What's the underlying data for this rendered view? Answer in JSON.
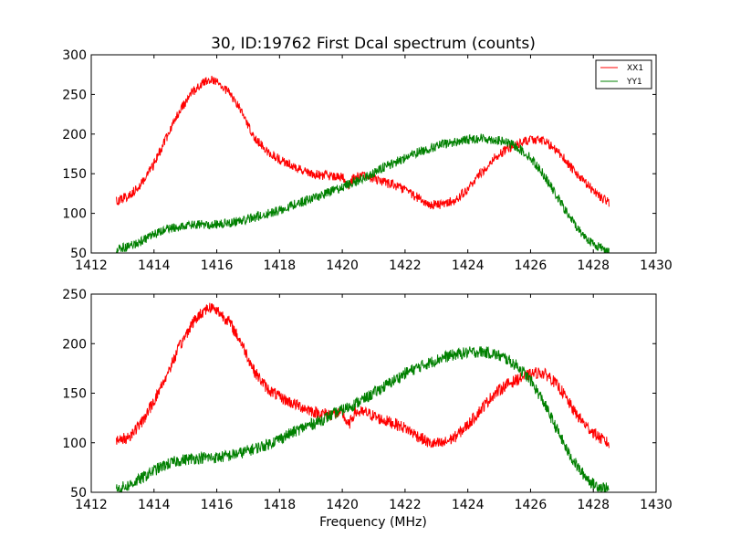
{
  "chart_data": [
    {
      "type": "line",
      "title": "30, ID:19762 First Dcal spectrum (counts)",
      "xlabel": "",
      "ylabel": "",
      "xlim": [
        1412,
        1430
      ],
      "ylim": [
        50,
        300
      ],
      "xticks": [
        1412,
        1414,
        1416,
        1418,
        1420,
        1422,
        1424,
        1426,
        1428,
        1430
      ],
      "yticks": [
        50,
        100,
        150,
        200,
        250,
        300
      ],
      "grid": false,
      "legend": "top-right",
      "series": [
        {
          "name": "XX1",
          "color": "#ff0000",
          "x": [
            1412.8,
            1413.2,
            1413.6,
            1414.0,
            1414.4,
            1414.8,
            1415.2,
            1415.6,
            1415.8,
            1416.0,
            1416.4,
            1416.8,
            1417.2,
            1417.6,
            1418.0,
            1418.4,
            1418.8,
            1419.2,
            1419.6,
            1420.0,
            1420.2,
            1420.4,
            1420.8,
            1421.2,
            1421.6,
            1422.0,
            1422.4,
            1422.8,
            1423.2,
            1423.6,
            1424.0,
            1424.4,
            1424.8,
            1425.2,
            1425.6,
            1426.0,
            1426.3,
            1426.6,
            1427.0,
            1427.4,
            1427.8,
            1428.2,
            1428.5
          ],
          "y": [
            115,
            122,
            138,
            162,
            195,
            228,
            252,
            266,
            269,
            266,
            252,
            228,
            196,
            178,
            168,
            160,
            153,
            149,
            147,
            146,
            135,
            147,
            146,
            141,
            136,
            130,
            120,
            111,
            111,
            117,
            131,
            150,
            168,
            180,
            188,
            193,
            193,
            187,
            173,
            152,
            136,
            122,
            113
          ]
        },
        {
          "name": "YY1",
          "color": "#008000",
          "x": [
            1412.8,
            1413.2,
            1413.6,
            1414.0,
            1414.4,
            1414.8,
            1415.2,
            1415.6,
            1416.0,
            1416.4,
            1416.8,
            1417.2,
            1417.6,
            1418.0,
            1418.4,
            1418.8,
            1419.2,
            1419.6,
            1420.0,
            1420.4,
            1420.8,
            1421.2,
            1421.6,
            1422.0,
            1422.4,
            1422.8,
            1423.2,
            1423.6,
            1424.0,
            1424.4,
            1424.8,
            1425.2,
            1425.6,
            1426.0,
            1426.4,
            1426.8,
            1427.2,
            1427.6,
            1428.0,
            1428.5
          ],
          "y": [
            55,
            58,
            65,
            73,
            80,
            83,
            85,
            86,
            86,
            88,
            91,
            95,
            99,
            104,
            110,
            116,
            121,
            127,
            133,
            140,
            147,
            155,
            163,
            170,
            177,
            182,
            187,
            190,
            193,
            195,
            193,
            190,
            183,
            170,
            150,
            124,
            98,
            76,
            61,
            53
          ]
        }
      ]
    },
    {
      "type": "line",
      "title": "",
      "xlabel": "Frequency (MHz)",
      "ylabel": "",
      "xlim": [
        1412,
        1430
      ],
      "ylim": [
        50,
        250
      ],
      "xticks": [
        1412,
        1414,
        1416,
        1418,
        1420,
        1422,
        1424,
        1426,
        1428,
        1430
      ],
      "yticks": [
        50,
        100,
        150,
        200,
        250
      ],
      "grid": false,
      "series": [
        {
          "color": "#ff0000",
          "x": [
            1412.8,
            1413.2,
            1413.6,
            1414.0,
            1414.4,
            1414.8,
            1415.2,
            1415.6,
            1415.8,
            1416.0,
            1416.4,
            1416.8,
            1417.2,
            1417.6,
            1418.0,
            1418.4,
            1418.8,
            1419.2,
            1419.6,
            1420.0,
            1420.2,
            1420.4,
            1420.8,
            1421.2,
            1421.6,
            1422.0,
            1422.4,
            1422.8,
            1423.2,
            1423.6,
            1424.0,
            1424.4,
            1424.8,
            1425.2,
            1425.6,
            1426.0,
            1426.3,
            1426.6,
            1427.0,
            1427.4,
            1427.8,
            1428.2,
            1428.5
          ],
          "y": [
            101,
            106,
            120,
            142,
            168,
            196,
            220,
            234,
            237,
            234,
            222,
            200,
            172,
            155,
            146,
            140,
            135,
            130,
            129,
            130,
            117,
            131,
            130,
            124,
            120,
            115,
            107,
            99,
            99,
            106,
            118,
            133,
            148,
            158,
            164,
            169,
            171,
            167,
            152,
            131,
            116,
            105,
            99
          ]
        },
        {
          "color": "#008000",
          "x": [
            1412.8,
            1413.2,
            1413.6,
            1414.0,
            1414.4,
            1414.8,
            1415.2,
            1415.6,
            1416.0,
            1416.4,
            1416.8,
            1417.2,
            1417.6,
            1418.0,
            1418.4,
            1418.8,
            1419.2,
            1419.6,
            1420.0,
            1420.4,
            1420.8,
            1421.2,
            1421.6,
            1422.0,
            1422.4,
            1422.8,
            1423.2,
            1423.6,
            1424.0,
            1424.4,
            1424.8,
            1425.2,
            1425.6,
            1426.0,
            1426.4,
            1426.8,
            1427.2,
            1427.6,
            1428.0,
            1428.5
          ],
          "y": [
            53,
            57,
            64,
            72,
            78,
            82,
            84,
            85,
            85,
            87,
            90,
            94,
            98,
            104,
            110,
            116,
            121,
            127,
            133,
            139,
            146,
            154,
            162,
            170,
            176,
            181,
            186,
            189,
            191,
            192,
            190,
            185,
            177,
            163,
            142,
            116,
            90,
            71,
            58,
            53
          ]
        }
      ]
    }
  ]
}
